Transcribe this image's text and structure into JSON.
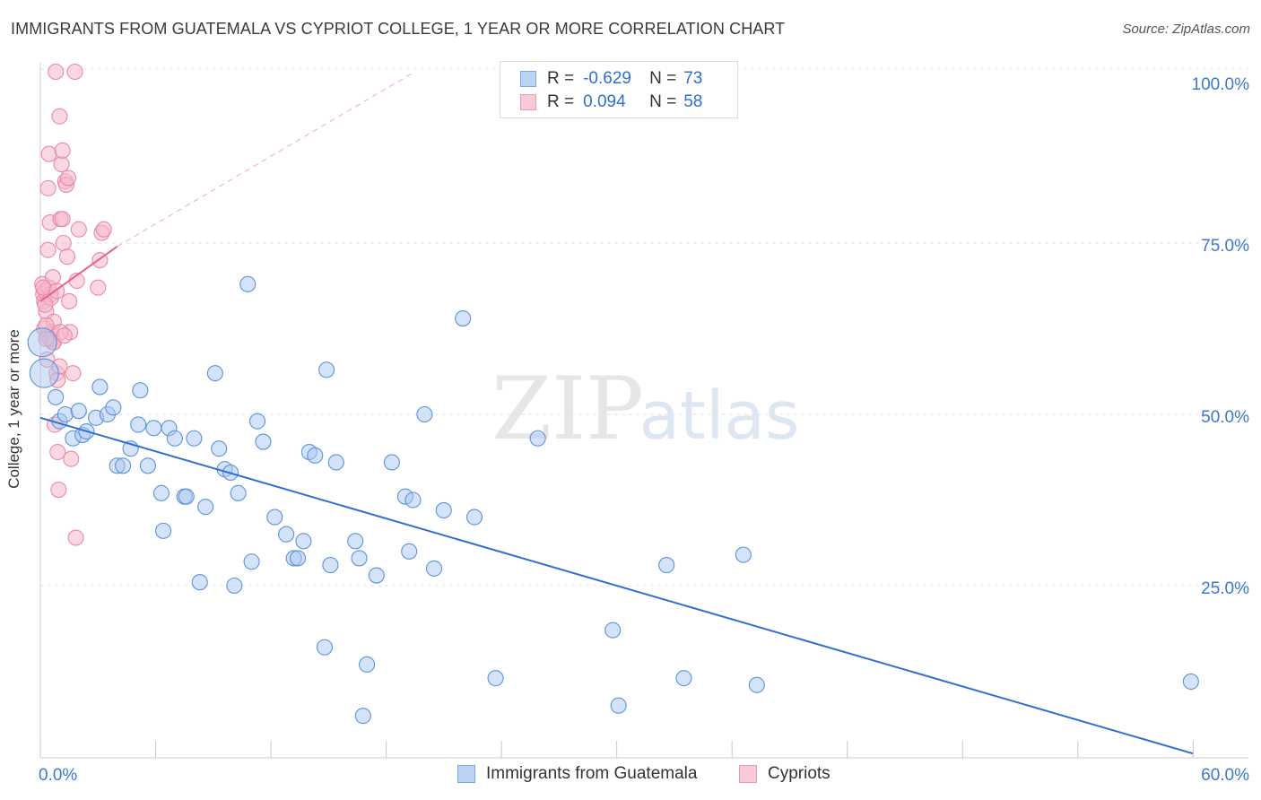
{
  "title": "IMMIGRANTS FROM GUATEMALA VS CYPRIOT COLLEGE, 1 YEAR OR MORE CORRELATION CHART",
  "source": "Source: ZipAtlas.com",
  "watermark": {
    "zip": "ZIP",
    "atlas": "atlas"
  },
  "legend": {
    "rows": [
      {
        "r_label": "R =",
        "r_value": "-0.629",
        "n_label": "N =",
        "n_value": "73",
        "color": "#a9c8f0",
        "stroke": "#6d9fe0"
      },
      {
        "r_label": "R =",
        "r_value": "0.094",
        "n_label": "N =",
        "n_value": "58",
        "color": "#f6b8cb",
        "stroke": "#e889a8"
      }
    ]
  },
  "bottom_legend": [
    "Immigrants from Guatemala",
    "Cypriots"
  ],
  "chart_data": {
    "type": "scatter",
    "title": "IMMIGRANTS FROM GUATEMALA VS CYPRIOT COLLEGE, 1 YEAR OR MORE CORRELATION CHART",
    "xlabel": "",
    "ylabel": "College, 1 year or more",
    "xlim": [
      0,
      60
    ],
    "ylim": [
      0,
      100
    ],
    "x_tick_labels": [
      "0.0%",
      "60.0%"
    ],
    "y_tick_labels": [
      "100.0%",
      "75.0%",
      "50.0%",
      "25.0%"
    ],
    "y_ticks": [
      100,
      75,
      50,
      25
    ],
    "colors": {
      "blue_fill": "#a9c8f0",
      "blue_stroke": "#5b93dc",
      "blue_line": "#2f6fd0",
      "pink_fill": "#f6b8cb",
      "pink_stroke": "#e889a8",
      "pink_line": "#e2638c",
      "axis_text": "#3e78d0"
    },
    "series": [
      {
        "name": "Immigrants from Guatemala",
        "trend": {
          "x0": 0,
          "y0": 49.5,
          "x1": 60,
          "y1": 0.5
        },
        "points": [
          [
            0.1,
            60.5
          ],
          [
            0.2,
            56.0
          ],
          [
            0.8,
            52.5
          ],
          [
            1.0,
            49.0
          ],
          [
            1.3,
            50.0
          ],
          [
            1.7,
            46.5
          ],
          [
            2.0,
            50.5
          ],
          [
            2.2,
            47.0
          ],
          [
            2.4,
            47.5
          ],
          [
            2.9,
            49.5
          ],
          [
            3.1,
            54.0
          ],
          [
            3.5,
            50.0
          ],
          [
            3.8,
            51.0
          ],
          [
            4.0,
            42.5
          ],
          [
            4.3,
            42.5
          ],
          [
            4.7,
            45.0
          ],
          [
            5.1,
            48.5
          ],
          [
            5.2,
            53.5
          ],
          [
            5.6,
            42.5
          ],
          [
            5.9,
            48.0
          ],
          [
            6.3,
            38.5
          ],
          [
            6.4,
            33.0
          ],
          [
            6.7,
            48.0
          ],
          [
            7.0,
            46.5
          ],
          [
            7.5,
            38.0
          ],
          [
            7.6,
            38.0
          ],
          [
            8.0,
            46.5
          ],
          [
            8.3,
            25.5
          ],
          [
            8.6,
            36.5
          ],
          [
            9.1,
            56.0
          ],
          [
            9.3,
            45.0
          ],
          [
            9.6,
            42.0
          ],
          [
            9.9,
            41.5
          ],
          [
            10.1,
            25.0
          ],
          [
            10.3,
            38.5
          ],
          [
            10.8,
            69.0
          ],
          [
            11.0,
            28.5
          ],
          [
            11.3,
            49.0
          ],
          [
            11.6,
            46.0
          ],
          [
            12.2,
            35.0
          ],
          [
            12.8,
            32.5
          ],
          [
            13.2,
            29.0
          ],
          [
            13.4,
            29.0
          ],
          [
            13.7,
            31.5
          ],
          [
            14.0,
            44.5
          ],
          [
            14.3,
            44.0
          ],
          [
            14.8,
            16.0
          ],
          [
            14.9,
            56.5
          ],
          [
            15.1,
            28.0
          ],
          [
            15.4,
            43.0
          ],
          [
            16.4,
            31.5
          ],
          [
            16.6,
            29.0
          ],
          [
            16.8,
            6.0
          ],
          [
            17.0,
            13.5
          ],
          [
            17.5,
            26.5
          ],
          [
            18.3,
            43.0
          ],
          [
            19.0,
            38.0
          ],
          [
            19.2,
            30.0
          ],
          [
            19.4,
            37.5
          ],
          [
            20.0,
            50.0
          ],
          [
            20.5,
            27.5
          ],
          [
            21.0,
            36.0
          ],
          [
            22.0,
            64.0
          ],
          [
            22.6,
            35.0
          ],
          [
            23.7,
            11.5
          ],
          [
            25.9,
            46.5
          ],
          [
            29.8,
            18.5
          ],
          [
            30.1,
            7.5
          ],
          [
            32.6,
            28.0
          ],
          [
            33.5,
            11.5
          ],
          [
            36.6,
            29.5
          ],
          [
            37.3,
            10.5
          ],
          [
            59.9,
            11.0
          ]
        ]
      },
      {
        "name": "Cypriots",
        "trend": {
          "x0": 0,
          "y0": 66.5,
          "x1": 4.0,
          "y1": 74.5,
          "dash_x1": 19.5,
          "dash_y1": 100
        },
        "points": [
          [
            0.1,
            69.0
          ],
          [
            0.15,
            67.5
          ],
          [
            0.2,
            66.5
          ],
          [
            0.25,
            68.0
          ],
          [
            0.3,
            65.0
          ],
          [
            0.35,
            61.5
          ],
          [
            0.4,
            74.0
          ],
          [
            0.4,
            83.0
          ],
          [
            0.45,
            88.0
          ],
          [
            0.5,
            78.0
          ],
          [
            0.55,
            67.5
          ],
          [
            0.6,
            62.0
          ],
          [
            0.65,
            60.5
          ],
          [
            0.7,
            63.5
          ],
          [
            0.75,
            48.5
          ],
          [
            0.8,
            100.0
          ],
          [
            0.85,
            56.0
          ],
          [
            0.9,
            44.5
          ],
          [
            0.95,
            39.0
          ],
          [
            1.0,
            93.5
          ],
          [
            1.05,
            78.5
          ],
          [
            1.1,
            86.5
          ],
          [
            1.15,
            88.5
          ],
          [
            1.2,
            75.0
          ],
          [
            1.3,
            84.0
          ],
          [
            1.35,
            83.5
          ],
          [
            1.4,
            73.0
          ],
          [
            1.45,
            84.5
          ],
          [
            1.5,
            66.5
          ],
          [
            1.55,
            62.0
          ],
          [
            1.6,
            43.5
          ],
          [
            1.7,
            56.0
          ],
          [
            1.8,
            100.0
          ],
          [
            1.9,
            69.5
          ],
          [
            2.0,
            77.0
          ],
          [
            0.2,
            62.5
          ],
          [
            0.3,
            63.0
          ],
          [
            0.35,
            58.0
          ],
          [
            0.5,
            61.0
          ],
          [
            0.6,
            61.0
          ],
          [
            0.7,
            60.5
          ],
          [
            0.9,
            55.0
          ],
          [
            1.0,
            57.0
          ],
          [
            1.05,
            62.0
          ],
          [
            1.15,
            78.5
          ],
          [
            1.25,
            61.5
          ],
          [
            0.45,
            68.5
          ],
          [
            0.55,
            67.0
          ],
          [
            0.65,
            70.0
          ],
          [
            0.15,
            68.5
          ],
          [
            0.25,
            66.0
          ],
          [
            0.85,
            68.0
          ],
          [
            1.85,
            32.0
          ],
          [
            3.1,
            72.5
          ],
          [
            3.2,
            76.5
          ],
          [
            3.3,
            77.0
          ],
          [
            3.0,
            68.5
          ],
          [
            0.3,
            61.0
          ]
        ]
      }
    ]
  }
}
